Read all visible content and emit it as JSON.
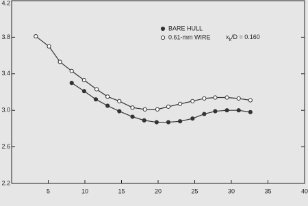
{
  "chart_data": {
    "type": "line",
    "xlim": [
      0,
      40
    ],
    "xticks": [
      5,
      10,
      15,
      20,
      25,
      30,
      35,
      40
    ],
    "ylim": [
      2.2,
      4.2
    ],
    "yticks": [
      2.2,
      2.6,
      {
        "value": 3.0,
        "label": "3.0"
      },
      3.4,
      3.8,
      4.2
    ],
    "annotation": [
      "x",
      "k",
      "/D = 0.160"
    ],
    "series": [
      {
        "name": "BARE HULL",
        "color": "#333333",
        "marker": "filled",
        "x": [
          8.2,
          9.9,
          11.5,
          13.1,
          14.7,
          16.5,
          18.1,
          19.8,
          21.4,
          23.0,
          24.7,
          26.3,
          27.8,
          29.4,
          31.0,
          32.6
        ],
        "values": [
          3.3,
          3.21,
          3.12,
          3.05,
          2.99,
          2.93,
          2.89,
          2.87,
          2.87,
          2.88,
          2.91,
          2.96,
          2.99,
          3.0,
          3.0,
          2.98
        ]
      },
      {
        "name": "0.61-mm WIRE",
        "color": "#333333",
        "marker": "open",
        "x": [
          3.3,
          5.1,
          6.6,
          8.2,
          9.9,
          11.6,
          13.1,
          14.7,
          16.5,
          18.2,
          19.9,
          21.4,
          23.0,
          24.7,
          26.3,
          27.8,
          29.4,
          31.0,
          32.6
        ],
        "values": [
          3.81,
          3.7,
          3.53,
          3.43,
          3.33,
          3.23,
          3.15,
          3.1,
          3.03,
          3.01,
          3.01,
          3.04,
          3.07,
          3.1,
          3.13,
          3.14,
          3.14,
          3.13,
          3.11
        ]
      }
    ]
  }
}
